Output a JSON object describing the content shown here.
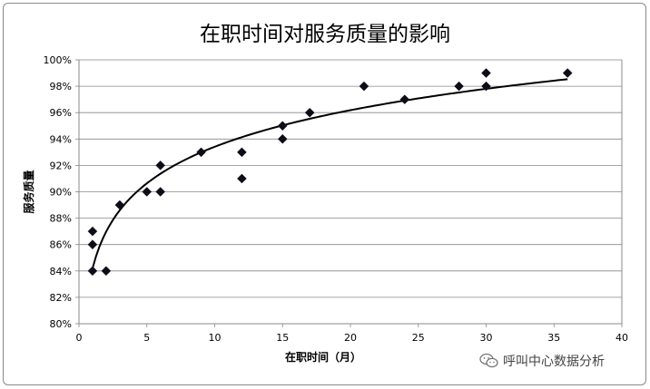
{
  "chart_data": {
    "type": "scatter",
    "title": "在职时间对服务质量的影响",
    "xlabel": "在职时间（月）",
    "ylabel": "服务质量",
    "xlim": [
      0,
      40
    ],
    "ylim": [
      80,
      100
    ],
    "x_ticks": [
      "0",
      "5",
      "10",
      "15",
      "20",
      "25",
      "30",
      "35",
      "40"
    ],
    "y_ticks": [
      "80%",
      "82%",
      "84%",
      "86%",
      "88%",
      "90%",
      "92%",
      "94%",
      "96%",
      "98%",
      "100%"
    ],
    "grid": "horizontal",
    "marker": "diamond",
    "points": [
      {
        "x": 1,
        "y": 84
      },
      {
        "x": 1,
        "y": 86
      },
      {
        "x": 1,
        "y": 87
      },
      {
        "x": 2,
        "y": 84
      },
      {
        "x": 3,
        "y": 89
      },
      {
        "x": 5,
        "y": 90
      },
      {
        "x": 6,
        "y": 90
      },
      {
        "x": 6,
        "y": 92
      },
      {
        "x": 9,
        "y": 93
      },
      {
        "x": 12,
        "y": 91
      },
      {
        "x": 12,
        "y": 93
      },
      {
        "x": 15,
        "y": 94
      },
      {
        "x": 15,
        "y": 95
      },
      {
        "x": 17,
        "y": 96
      },
      {
        "x": 21,
        "y": 98
      },
      {
        "x": 24,
        "y": 97
      },
      {
        "x": 28,
        "y": 98
      },
      {
        "x": 30,
        "y": 98
      },
      {
        "x": 30,
        "y": 99
      },
      {
        "x": 36,
        "y": 99
      }
    ],
    "trendline": {
      "type": "logarithmic",
      "x_range": [
        1,
        36
      ],
      "a": 84.2,
      "b": 4.0
    }
  },
  "watermark": {
    "icon": "wechat-icon",
    "text": "呼叫中心数据分析"
  },
  "colors": {
    "marker": "#0d0d1a",
    "trendline": "#000000",
    "grid": "#888888",
    "axis": "#888888"
  }
}
